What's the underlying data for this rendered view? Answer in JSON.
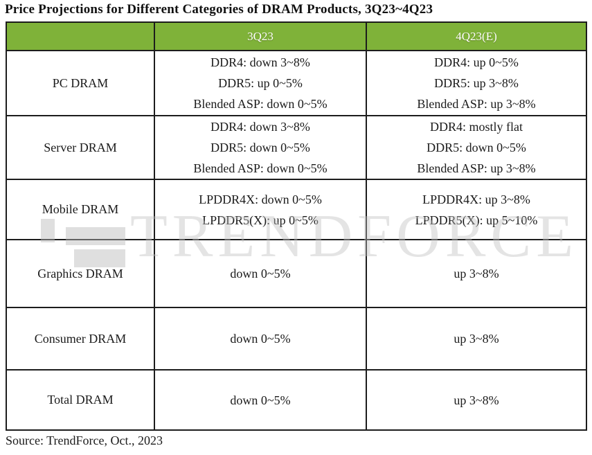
{
  "title": "Price Projections for Different Categories of DRAM Products, 3Q23~4Q23",
  "source_note": "Source: TrendForce, Oct., 2023",
  "watermark_text": "TRENDFORCE",
  "colors": {
    "header_bg": "#7fb239",
    "header_text": "#ffffff",
    "border": "#1c1c1c",
    "watermark": "#bebebe"
  },
  "chart_data": {
    "type": "table",
    "title": "Price Projections for Different Categories of DRAM Products, 3Q23~4Q23",
    "columns": [
      "",
      "3Q23",
      "4Q23(E)"
    ],
    "rows": [
      {
        "category": "PC DRAM",
        "q3_lines": [
          "DDR4: down 3~8%",
          "DDR5: up 0~5%",
          "Blended ASP: down 0~5%"
        ],
        "q4_lines": [
          "DDR4: up 0~5%",
          "DDR5:  up 3~8%",
          "Blended ASP: up 3~8%"
        ]
      },
      {
        "category": "Server DRAM",
        "q3_lines": [
          "DDR4: down 3~8%",
          "DDR5: down 0~5%",
          "Blended ASP: down 0~5%"
        ],
        "q4_lines": [
          "DDR4: mostly flat",
          "DDR5: down 0~5%",
          "Blended ASP: up 3~8%"
        ]
      },
      {
        "category": "Mobile DRAM",
        "q3_lines": [
          "LPDDR4X: down 0~5%",
          "LPDDR5(X): up 0~5%"
        ],
        "q4_lines": [
          "LPDDR4X: up 3~8%",
          "LPDDR5(X): up 5~10%"
        ]
      },
      {
        "category": "Graphics DRAM",
        "q3_lines": [
          "down 0~5%"
        ],
        "q4_lines": [
          "up  3~8%"
        ]
      },
      {
        "category": "Consumer DRAM",
        "q3_lines": [
          "down 0~5%"
        ],
        "q4_lines": [
          "up  3~8%"
        ]
      },
      {
        "category": "Total DRAM",
        "q3_lines": [
          "down 0~5%"
        ],
        "q4_lines": [
          "up  3~8%"
        ]
      }
    ]
  }
}
